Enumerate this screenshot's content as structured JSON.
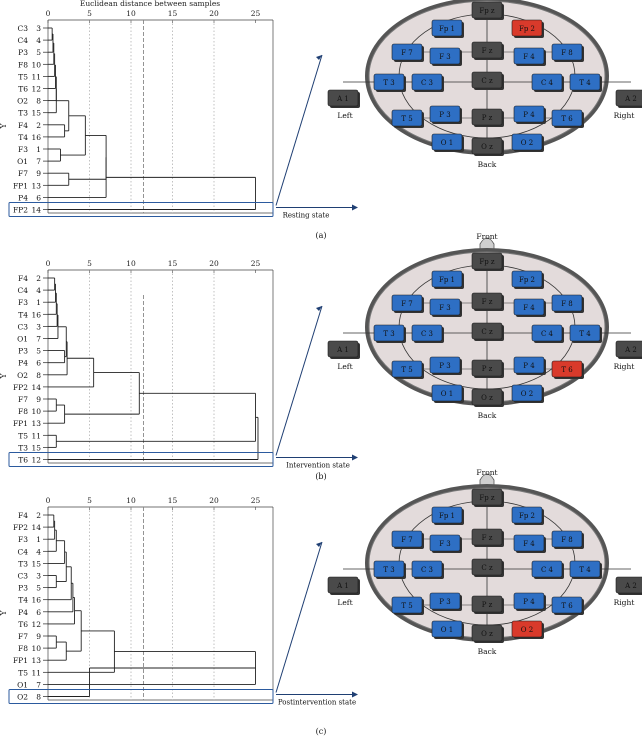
{
  "figure": {
    "dendro_title": "Euclidean distance between samples",
    "y_axis_label": "Y",
    "x_ticks": [
      "0",
      "5",
      "10",
      "15",
      "20",
      "25"
    ],
    "x_tick_values": [
      0,
      5,
      10,
      15,
      20,
      25
    ],
    "cut_distance": 11.5,
    "labels": {
      "front": "Front",
      "back": "Back",
      "left": "Left",
      "right": "Right"
    },
    "electrode_style": {
      "gray": "#4a4a4a",
      "blue": "#2e6fc4",
      "red": "#d93a2b",
      "highlight_box": "#2b5a9e",
      "head_fill": "#e3dbdb"
    }
  },
  "panels": [
    {
      "caption": "(a)",
      "state_label": "Resting state",
      "rows": [
        {
          "label": "C3",
          "num": "3"
        },
        {
          "label": "C4",
          "num": "4"
        },
        {
          "label": "P3",
          "num": "5"
        },
        {
          "label": "F8",
          "num": "10"
        },
        {
          "label": "T5",
          "num": "11"
        },
        {
          "label": "T6",
          "num": "12"
        },
        {
          "label": "O2",
          "num": "8"
        },
        {
          "label": "T3",
          "num": "15"
        },
        {
          "label": "F4",
          "num": "2"
        },
        {
          "label": "T4",
          "num": "16"
        },
        {
          "label": "F3",
          "num": "1"
        },
        {
          "label": "O1",
          "num": "7"
        },
        {
          "label": "F7",
          "num": "9"
        },
        {
          "label": "FP1",
          "num": "13"
        },
        {
          "label": "P4",
          "num": "6"
        },
        {
          "label": "FP2",
          "num": "14"
        }
      ],
      "highlight_row": "FP2",
      "red_electrode": "Fp 2",
      "merges": [
        {
          "a": 0,
          "b": 1,
          "d": 0.5
        },
        {
          "a": 16,
          "b": 2,
          "d": 0.6
        },
        {
          "a": 17,
          "b": 3,
          "d": 0.7
        },
        {
          "a": 18,
          "b": 4,
          "d": 0.8
        },
        {
          "a": 19,
          "b": 5,
          "d": 0.9
        },
        {
          "a": 20,
          "b": 6,
          "d": 1.0
        },
        {
          "a": 21,
          "b": 7,
          "d": 1.0
        },
        {
          "a": 8,
          "b": 9,
          "d": 2.0
        },
        {
          "a": 22,
          "b": 23,
          "d": 2.5
        },
        {
          "a": 10,
          "b": 11,
          "d": 1.5
        },
        {
          "a": 24,
          "b": 25,
          "d": 4.5
        },
        {
          "a": 12,
          "b": 13,
          "d": 2.5
        },
        {
          "a": 26,
          "b": 27,
          "d": 7.0
        },
        {
          "a": 28,
          "b": 14,
          "d": 7.0
        },
        {
          "a": 29,
          "b": 15,
          "d": 25.0
        }
      ]
    },
    {
      "caption": "(b)",
      "state_label": "Intervention state",
      "rows": [
        {
          "label": "F4",
          "num": "2"
        },
        {
          "label": "C4",
          "num": "4"
        },
        {
          "label": "F3",
          "num": "1"
        },
        {
          "label": "T4",
          "num": "16"
        },
        {
          "label": "C3",
          "num": "3"
        },
        {
          "label": "O1",
          "num": "7"
        },
        {
          "label": "P3",
          "num": "5"
        },
        {
          "label": "P4",
          "num": "6"
        },
        {
          "label": "O2",
          "num": "8"
        },
        {
          "label": "FP2",
          "num": "14"
        },
        {
          "label": "F7",
          "num": "9"
        },
        {
          "label": "F8",
          "num": "10"
        },
        {
          "label": "FP1",
          "num": "13"
        },
        {
          "label": "T5",
          "num": "11"
        },
        {
          "label": "T3",
          "num": "15"
        },
        {
          "label": "T6",
          "num": "12"
        }
      ],
      "highlight_row": "T6",
      "red_electrode": "T 6",
      "merges": [
        {
          "a": 0,
          "b": 1,
          "d": 0.8
        },
        {
          "a": 16,
          "b": 2,
          "d": 0.9
        },
        {
          "a": 17,
          "b": 3,
          "d": 1.0
        },
        {
          "a": 18,
          "b": 4,
          "d": 1.1
        },
        {
          "a": 19,
          "b": 5,
          "d": 1.2
        },
        {
          "a": 6,
          "b": 7,
          "d": 2.0
        },
        {
          "a": 20,
          "b": 21,
          "d": 2.2
        },
        {
          "a": 22,
          "b": 8,
          "d": 2.3
        },
        {
          "a": 23,
          "b": 9,
          "d": 5.5
        },
        {
          "a": 10,
          "b": 11,
          "d": 1.0
        },
        {
          "a": 25,
          "b": 12,
          "d": 2.0
        },
        {
          "a": 24,
          "b": 26,
          "d": 11.0
        },
        {
          "a": 13,
          "b": 14,
          "d": 1.0
        },
        {
          "a": 27,
          "b": 28,
          "d": 25.0
        },
        {
          "a": 29,
          "b": 15,
          "d": 25.3
        }
      ]
    },
    {
      "caption": "(c)",
      "state_label": "Postintervention state",
      "rows": [
        {
          "label": "F4",
          "num": "2"
        },
        {
          "label": "FP2",
          "num": "14"
        },
        {
          "label": "F3",
          "num": "1"
        },
        {
          "label": "C4",
          "num": "4"
        },
        {
          "label": "T3",
          "num": "15"
        },
        {
          "label": "C3",
          "num": "3"
        },
        {
          "label": "P3",
          "num": "5"
        },
        {
          "label": "T4",
          "num": "16"
        },
        {
          "label": "P4",
          "num": "6"
        },
        {
          "label": "T6",
          "num": "12"
        },
        {
          "label": "F7",
          "num": "9"
        },
        {
          "label": "F8",
          "num": "10"
        },
        {
          "label": "FP1",
          "num": "13"
        },
        {
          "label": "T5",
          "num": "11"
        },
        {
          "label": "O1",
          "num": "7"
        },
        {
          "label": "O2",
          "num": "8"
        }
      ],
      "highlight_row": "O2",
      "red_electrode": "O 2",
      "merges": [
        {
          "a": 0,
          "b": 1,
          "d": 0.7
        },
        {
          "a": 16,
          "b": 2,
          "d": 0.8
        },
        {
          "a": 17,
          "b": 3,
          "d": 1.0
        },
        {
          "a": 18,
          "b": 4,
          "d": 2.0
        },
        {
          "a": 5,
          "b": 6,
          "d": 1.0
        },
        {
          "a": 19,
          "b": 20,
          "d": 2.2
        },
        {
          "a": 21,
          "b": 7,
          "d": 2.8
        },
        {
          "a": 22,
          "b": 8,
          "d": 3.0
        },
        {
          "a": 23,
          "b": 9,
          "d": 3.2
        },
        {
          "a": 10,
          "b": 11,
          "d": 1.0
        },
        {
          "a": 25,
          "b": 12,
          "d": 2.2
        },
        {
          "a": 24,
          "b": 26,
          "d": 4.0
        },
        {
          "a": 27,
          "b": 13,
          "d": 8.0
        },
        {
          "a": 28,
          "b": 14,
          "d": 25.0
        },
        {
          "a": 29,
          "b": 15,
          "d": 5.0
        }
      ]
    }
  ],
  "electrodes": [
    {
      "name": "Fp z",
      "color": "gray"
    },
    {
      "name": "Fp 1",
      "color": "blue"
    },
    {
      "name": "Fp 2",
      "color": "blue"
    },
    {
      "name": "F 7",
      "color": "blue"
    },
    {
      "name": "F 3",
      "color": "blue"
    },
    {
      "name": "F z",
      "color": "gray"
    },
    {
      "name": "F 4",
      "color": "blue"
    },
    {
      "name": "F 8",
      "color": "blue"
    },
    {
      "name": "A 1",
      "color": "gray"
    },
    {
      "name": "T 3",
      "color": "blue"
    },
    {
      "name": "C 3",
      "color": "blue"
    },
    {
      "name": "C z",
      "color": "gray"
    },
    {
      "name": "C 4",
      "color": "blue"
    },
    {
      "name": "T 4",
      "color": "blue"
    },
    {
      "name": "A 2",
      "color": "gray"
    },
    {
      "name": "T 5",
      "color": "blue"
    },
    {
      "name": "P 3",
      "color": "blue"
    },
    {
      "name": "P z",
      "color": "gray"
    },
    {
      "name": "P 4",
      "color": "blue"
    },
    {
      "name": "T 6",
      "color": "blue"
    },
    {
      "name": "O 1",
      "color": "blue"
    },
    {
      "name": "O z",
      "color": "gray"
    },
    {
      "name": "O 2",
      "color": "blue"
    }
  ]
}
